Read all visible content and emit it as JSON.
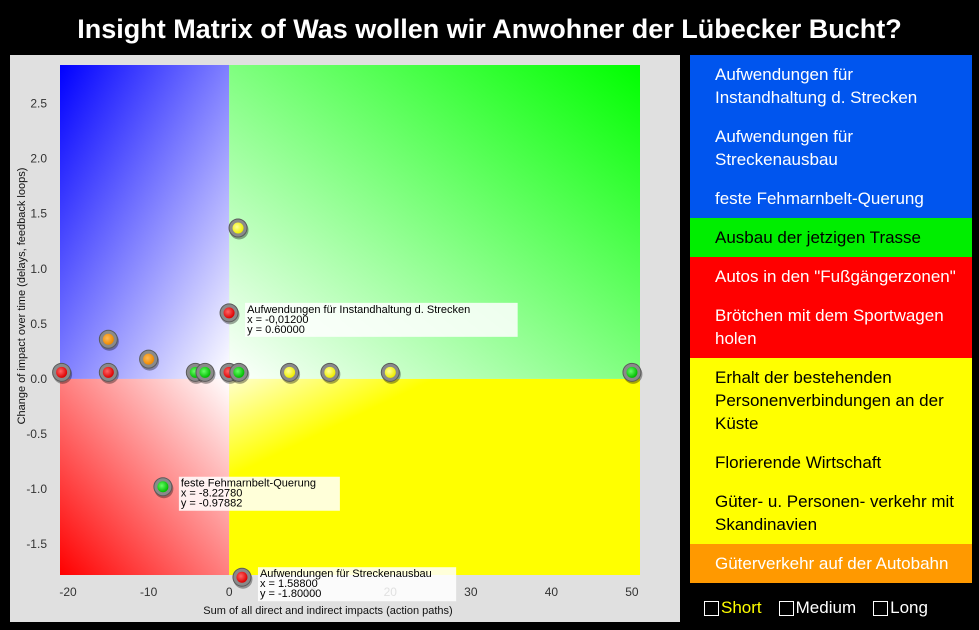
{
  "title": "Insight Matrix of Was wollen wir Anwohner der Lübecker Bucht?",
  "chart_data": {
    "type": "scatter",
    "xlabel": "Sum of all direct and indirect impacts (action paths)",
    "ylabel": "Change of impact over time (delays, feedback loops)",
    "xlim": [
      -21,
      51
    ],
    "ylim": [
      -1.78,
      2.85
    ],
    "xticks": [
      "-20",
      "-10",
      "0",
      "10",
      "20",
      "30",
      "40",
      "50"
    ],
    "yticks": [
      "2.5",
      "2.0",
      "1.5",
      "1.0",
      "0.5",
      "0.0",
      "-0.5",
      "-1.0",
      "-1.5"
    ],
    "quadrants": {
      "top_left": "#0000ff",
      "top_right": "#00ff00",
      "bottom_left": "#ff0000",
      "bottom_right": "#ffff00"
    },
    "points": [
      {
        "x": -20.8,
        "y": 0.06,
        "color": "red"
      },
      {
        "x": -15,
        "y": 0.06,
        "color": "red"
      },
      {
        "x": -15,
        "y": 0.36,
        "color": "orange"
      },
      {
        "x": -10,
        "y": 0.18,
        "color": "orange"
      },
      {
        "x": -8.2278,
        "y": -0.97882,
        "color": "green"
      },
      {
        "x": -4.2,
        "y": 0.06,
        "color": "green"
      },
      {
        "x": -3,
        "y": 0.06,
        "color": "green"
      },
      {
        "x": -0.012,
        "y": 0.06,
        "color": "red"
      },
      {
        "x": -0.012,
        "y": 0.6,
        "color": "red"
      },
      {
        "x": 1.2,
        "y": 0.06,
        "color": "green"
      },
      {
        "x": 1.1,
        "y": 1.37,
        "color": "yellow"
      },
      {
        "x": 1.588,
        "y": -1.8,
        "color": "red"
      },
      {
        "x": 7.5,
        "y": 0.06,
        "color": "yellow"
      },
      {
        "x": 12.5,
        "y": 0.06,
        "color": "yellow"
      },
      {
        "x": 20,
        "y": 0.06,
        "color": "yellow"
      },
      {
        "x": 50,
        "y": 0.06,
        "color": "green"
      }
    ],
    "annotations": [
      {
        "label": "Aufwendungen für Instandhaltung d. Strecken",
        "x": -0.012,
        "y": 0.6,
        "x_text": "x = -0,01200",
        "y_text": "y = 0.60000"
      },
      {
        "label": "feste Fehmarnbelt-Querung",
        "x": -8.2278,
        "y": -0.97882,
        "x_text": "x = -8.22780",
        "y_text": "y = -0.97882"
      },
      {
        "label": "Aufwendungen für Streckenausbau",
        "x": 1.588,
        "y": -1.8,
        "x_text": "x = 1.58800",
        "y_text": "y = -1.80000"
      }
    ]
  },
  "legend": {
    "items": [
      {
        "label": "Aufwendungen für Instandhaltung d. Strecken",
        "bg": "#0055ee",
        "fg": "#ffffff"
      },
      {
        "label": "Aufwendungen für Streckenausbau",
        "bg": "#0055ee",
        "fg": "#ffffff"
      },
      {
        "label": "feste Fehmarnbelt-Querung",
        "bg": "#0055ee",
        "fg": "#ffffff"
      },
      {
        "label": "Ausbau der jetzigen Trasse",
        "bg": "#00ee00",
        "fg": "#000000"
      },
      {
        "label": "Autos in den \"Fußgängerzonen\"",
        "bg": "#ff0000",
        "fg": "#ffffff"
      },
      {
        "label": "Brötchen mit dem Sportwagen holen",
        "bg": "#ff0000",
        "fg": "#ffffff"
      },
      {
        "label": "Erhalt der bestehenden Personenverbindungen an der Küste",
        "bg": "#ffff00",
        "fg": "#000000"
      },
      {
        "label": "Florierende Wirtschaft",
        "bg": "#ffff00",
        "fg": "#000000"
      },
      {
        "label": "Güter- u. Personen- verkehr mit Skandinavien",
        "bg": "#ffff00",
        "fg": "#000000"
      },
      {
        "label": "Güterverkehr auf der Autobahn",
        "bg": "#ff9900",
        "fg": "#ffffff"
      }
    ]
  },
  "filters": [
    {
      "label": "Short",
      "checked": false,
      "active": true
    },
    {
      "label": "Medium",
      "checked": false,
      "active": false
    },
    {
      "label": "Long",
      "checked": false,
      "active": false
    }
  ]
}
